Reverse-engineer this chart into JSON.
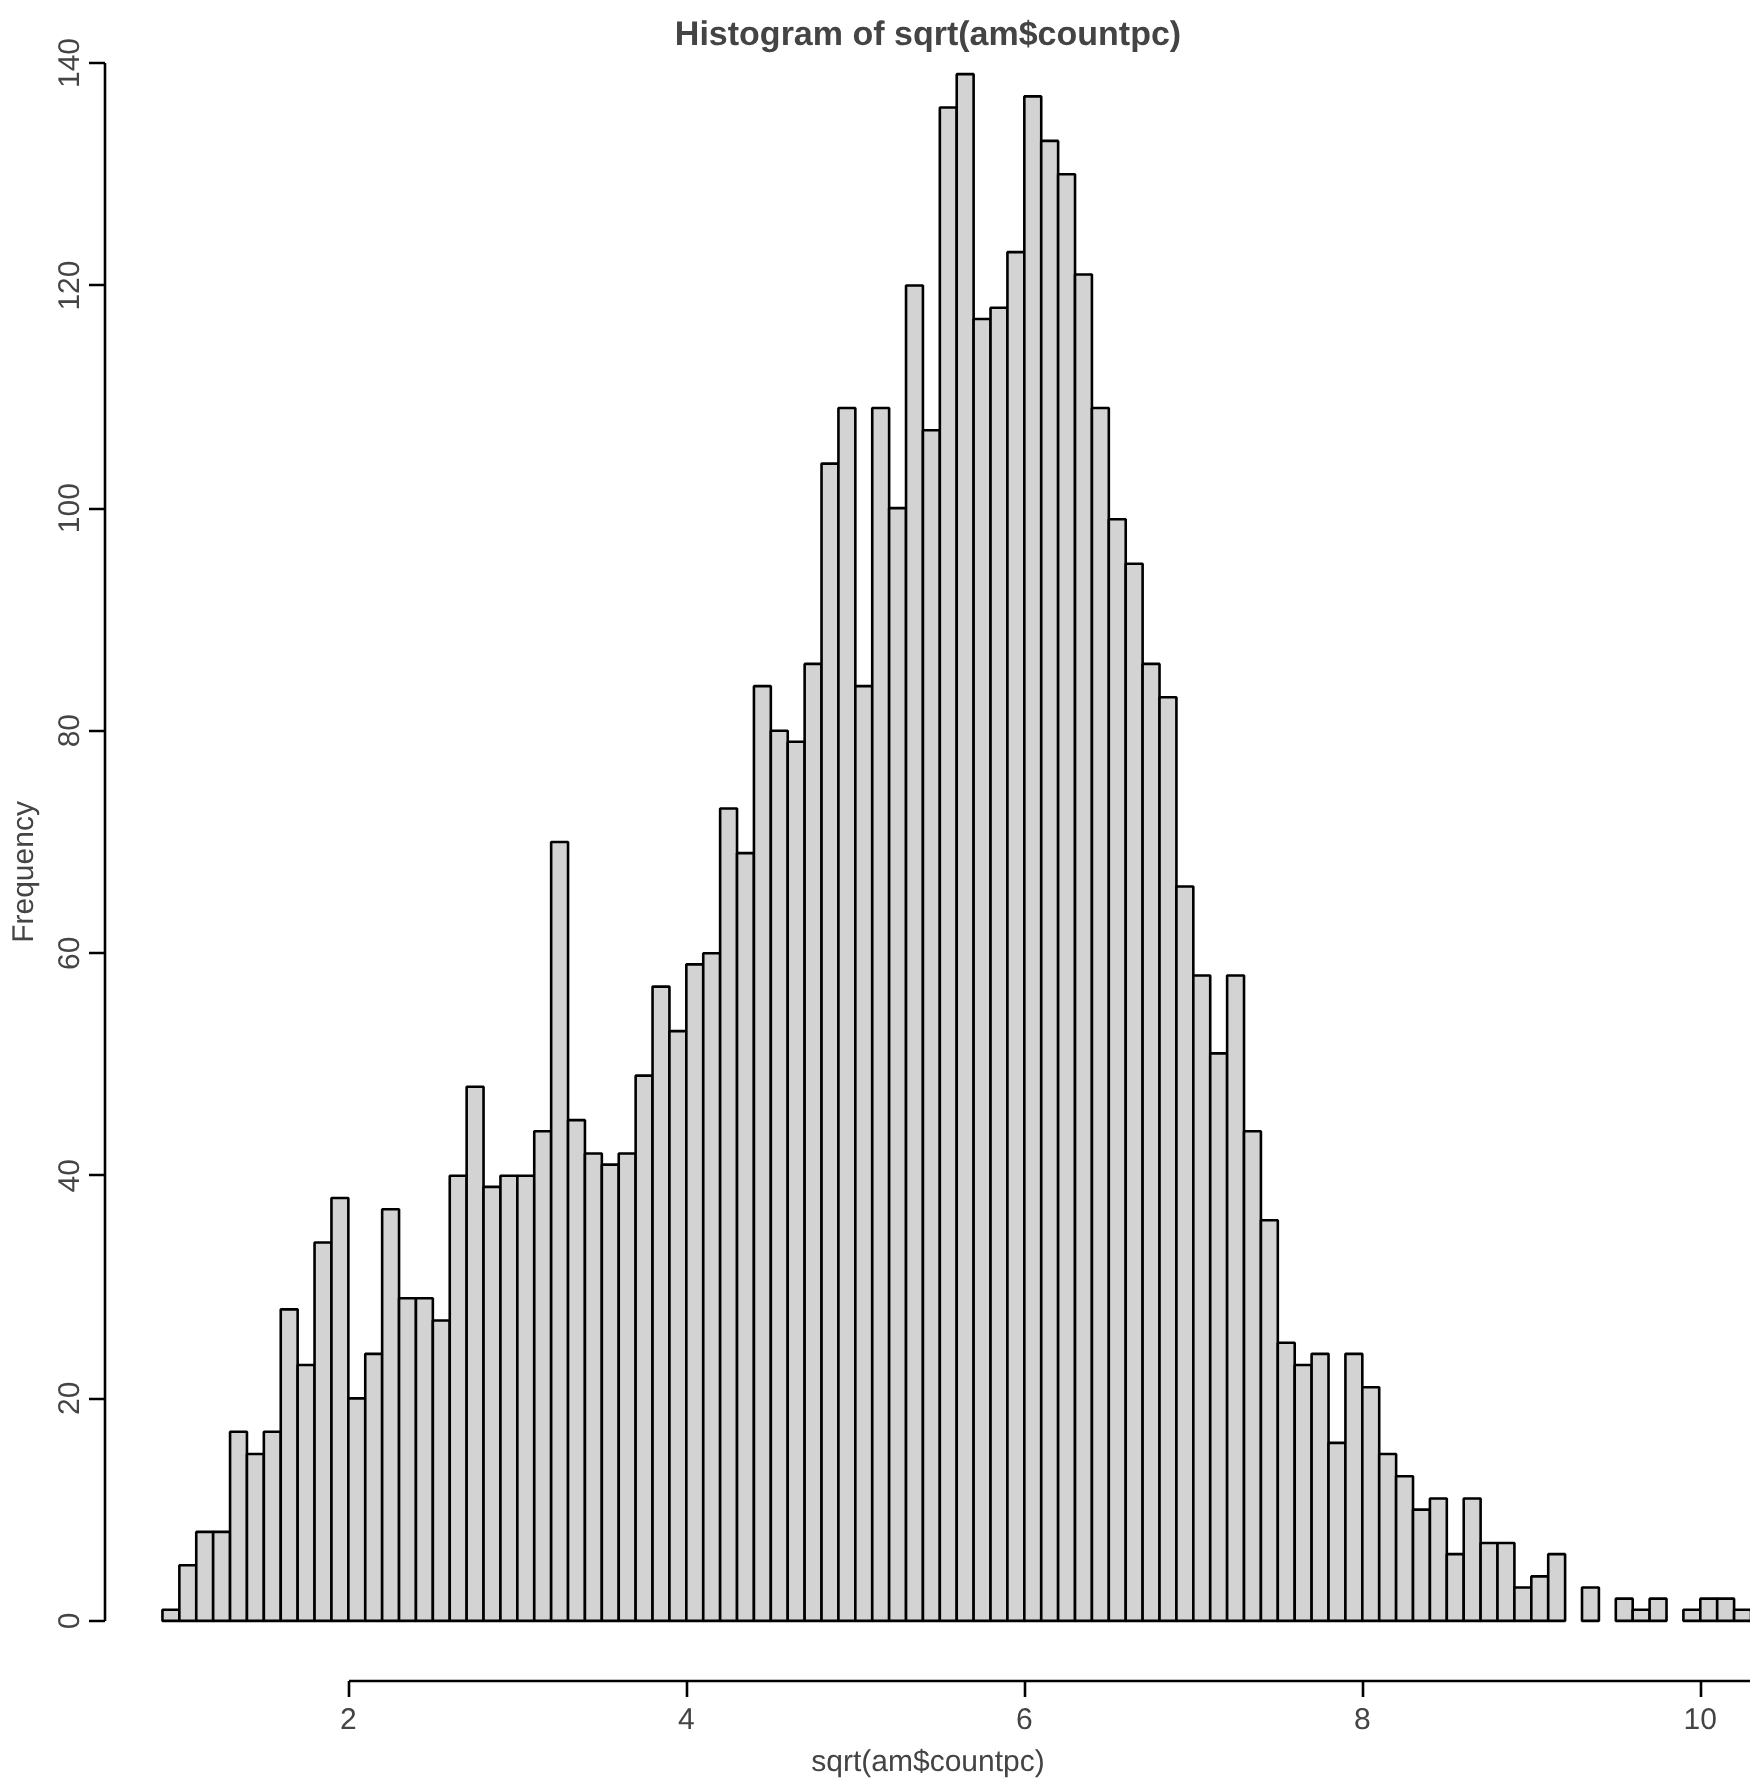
{
  "chart_data": {
    "type": "histogram",
    "title": "Histogram of sqrt(am$countpc)",
    "xlabel": "sqrt(am$countpc)",
    "ylabel": "Frequency",
    "bins": [
      0.9,
      1.0,
      1.1,
      1.2,
      1.3,
      1.4,
      1.5,
      1.6,
      1.7,
      1.8,
      1.9,
      2.0,
      2.1,
      2.2,
      2.3,
      2.4,
      2.5,
      2.6,
      2.7,
      2.8,
      2.9,
      3.0,
      3.1,
      3.2,
      3.3,
      3.4,
      3.5,
      3.6,
      3.7,
      3.8,
      3.9,
      4.0,
      4.1,
      4.2,
      4.3,
      4.4,
      4.5,
      4.6,
      4.7,
      4.8,
      4.9,
      5.0,
      5.1,
      5.2,
      5.3,
      5.4,
      5.5,
      5.6,
      5.7,
      5.8,
      5.9,
      6.0,
      6.1,
      6.2,
      6.3,
      6.4,
      6.5,
      6.6,
      6.7,
      6.8,
      6.9,
      7.0,
      7.1,
      7.2,
      7.3,
      7.4,
      7.5,
      7.6,
      7.7,
      7.8,
      7.9,
      8.0,
      8.1,
      8.2,
      8.3,
      8.4,
      8.5,
      8.6,
      8.7,
      8.8,
      8.9,
      9.0,
      9.1,
      9.2,
      9.3,
      9.4,
      9.5,
      9.6,
      9.7,
      9.8,
      9.9,
      10.0,
      10.1,
      10.2,
      10.3
    ],
    "values": [
      1,
      5,
      8,
      8,
      17,
      15,
      17,
      28,
      23,
      34,
      38,
      20,
      24,
      37,
      29,
      29,
      27,
      40,
      48,
      39,
      40,
      40,
      44,
      70,
      45,
      42,
      41,
      42,
      49,
      57,
      53,
      59,
      60,
      73,
      69,
      84,
      80,
      79,
      86,
      104,
      109,
      84,
      109,
      100,
      120,
      107,
      136,
      139,
      117,
      118,
      123,
      137,
      133,
      130,
      121,
      109,
      99,
      95,
      86,
      83,
      66,
      58,
      51,
      58,
      44,
      36,
      25,
      23,
      24,
      16,
      24,
      21,
      15,
      13,
      10,
      11,
      6,
      11,
      7,
      7,
      3,
      4,
      6,
      0,
      3,
      0,
      2,
      1,
      2,
      0,
      1,
      2,
      2,
      1
    ],
    "color": "#d3d3d3",
    "xlim": [
      0.56,
      10.3
    ],
    "xticks": [
      2,
      4,
      6,
      8,
      10
    ],
    "ylim": [
      -5.4,
      140
    ],
    "yticks": [
      0,
      20,
      40,
      60,
      80,
      100,
      120,
      140
    ],
    "grid": false
  }
}
